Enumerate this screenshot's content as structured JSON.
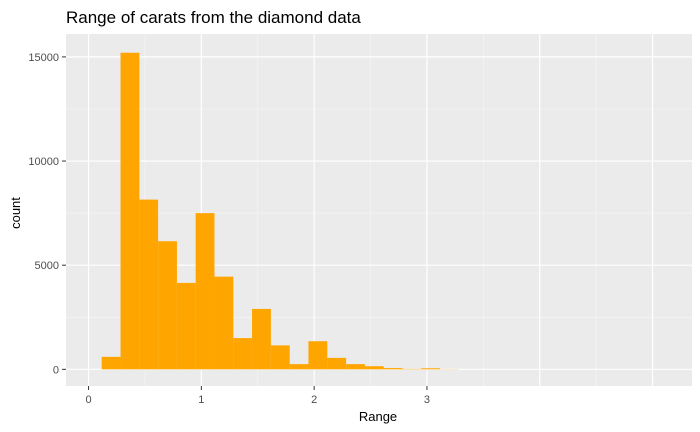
{
  "chart_data": {
    "type": "bar",
    "title": "Range of carats from the diamond data",
    "xlabel": "Range",
    "ylabel": "count",
    "xlim": [
      -0.2,
      5.35
    ],
    "ylim": [
      -800,
      16100
    ],
    "x_ticks": [
      0,
      1,
      2,
      3
    ],
    "x_tick_labels": [
      "0",
      "1",
      "2",
      "3"
    ],
    "y_ticks": [
      0,
      5000,
      10000,
      15000
    ],
    "y_tick_labels": [
      "0",
      "5000",
      "10000",
      "15000"
    ],
    "grid": true,
    "legend": "none",
    "bin_width": 0.167,
    "bins": [
      {
        "x": 0.2,
        "count": 600
      },
      {
        "x": 0.367,
        "count": 15200
      },
      {
        "x": 0.533,
        "count": 8150
      },
      {
        "x": 0.7,
        "count": 6150
      },
      {
        "x": 0.867,
        "count": 4150
      },
      {
        "x": 1.033,
        "count": 7500
      },
      {
        "x": 1.2,
        "count": 4450
      },
      {
        "x": 1.367,
        "count": 1500
      },
      {
        "x": 1.533,
        "count": 2900
      },
      {
        "x": 1.7,
        "count": 1150
      },
      {
        "x": 1.867,
        "count": 250
      },
      {
        "x": 2.033,
        "count": 1350
      },
      {
        "x": 2.2,
        "count": 550
      },
      {
        "x": 2.367,
        "count": 250
      },
      {
        "x": 2.533,
        "count": 150
      },
      {
        "x": 2.7,
        "count": 60
      },
      {
        "x": 2.867,
        "count": 20
      },
      {
        "x": 3.033,
        "count": 50
      },
      {
        "x": 3.2,
        "count": 10
      }
    ],
    "colors": {
      "bar": "#FFA500",
      "panel": "#EBEBEB",
      "grid_major": "#FFFFFF",
      "grid_minor": "#F5F5F5"
    }
  }
}
